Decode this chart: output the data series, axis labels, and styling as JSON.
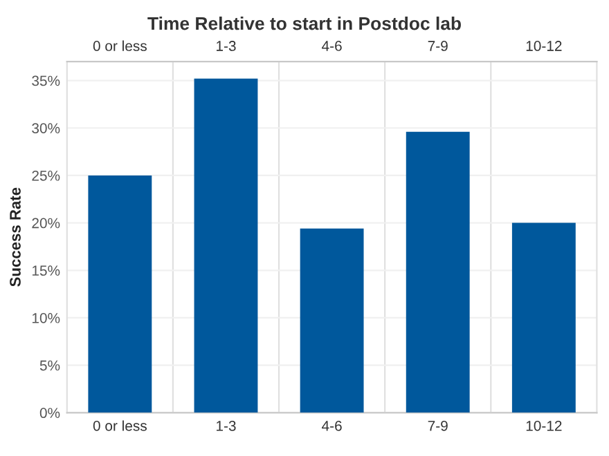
{
  "chart_data": {
    "type": "bar",
    "title": "Time Relative to start in Postdoc lab",
    "ylabel": "Success Rate",
    "categories": [
      "0 or less",
      "1-3",
      "4-6",
      "7-9",
      "10-12"
    ],
    "values": [
      25,
      35.2,
      19.4,
      29.6,
      20
    ],
    "color": "#00589c",
    "ylim": [
      0,
      37
    ],
    "yticks": [
      {
        "value": 0,
        "label": "0%"
      },
      {
        "value": 5,
        "label": "5%"
      },
      {
        "value": 10,
        "label": "10%"
      },
      {
        "value": 15,
        "label": "15%"
      },
      {
        "value": 20,
        "label": "20%"
      },
      {
        "value": 25,
        "label": "25%"
      },
      {
        "value": 30,
        "label": "30%"
      },
      {
        "value": 35,
        "label": "35%"
      }
    ],
    "grid": "y"
  }
}
